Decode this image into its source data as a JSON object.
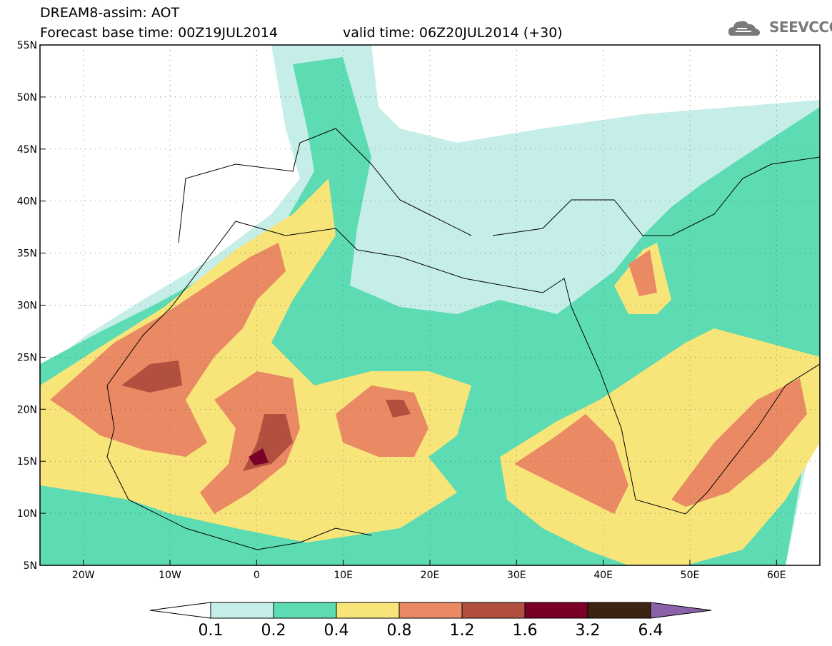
{
  "header": {
    "model_line": "DREAM8-assim: AOT",
    "base_time": "Forecast base time: 00Z19JUL2014",
    "valid_time": "valid time: 06Z20JUL2014 (+30)",
    "logo_text": "SEEVCCC"
  },
  "map": {
    "lon_range": [
      -25,
      65
    ],
    "lat_range": [
      5,
      55
    ],
    "lat_labels": [
      "55N",
      "50N",
      "45N",
      "40N",
      "35N",
      "30N",
      "25N",
      "20N",
      "15N",
      "10N",
      "5N"
    ],
    "lat_values": [
      55,
      50,
      45,
      40,
      35,
      30,
      25,
      20,
      15,
      10,
      5
    ],
    "lon_labels": [
      "20W",
      "10W",
      "0",
      "10E",
      "20E",
      "30E",
      "40E",
      "50E",
      "60E"
    ],
    "lon_values": [
      -20,
      -10,
      0,
      10,
      20,
      30,
      40,
      50,
      60
    ]
  },
  "colorbar": {
    "levels": [
      "0.1",
      "0.2",
      "0.4",
      "0.8",
      "1.2",
      "1.6",
      "3.2",
      "6.4"
    ],
    "colors": [
      "#c6eee9",
      "#5ddbb2",
      "#f7e57a",
      "#ea8a64",
      "#b2503f",
      "#7a0025",
      "#3b2412",
      "#8b62a8"
    ]
  }
}
